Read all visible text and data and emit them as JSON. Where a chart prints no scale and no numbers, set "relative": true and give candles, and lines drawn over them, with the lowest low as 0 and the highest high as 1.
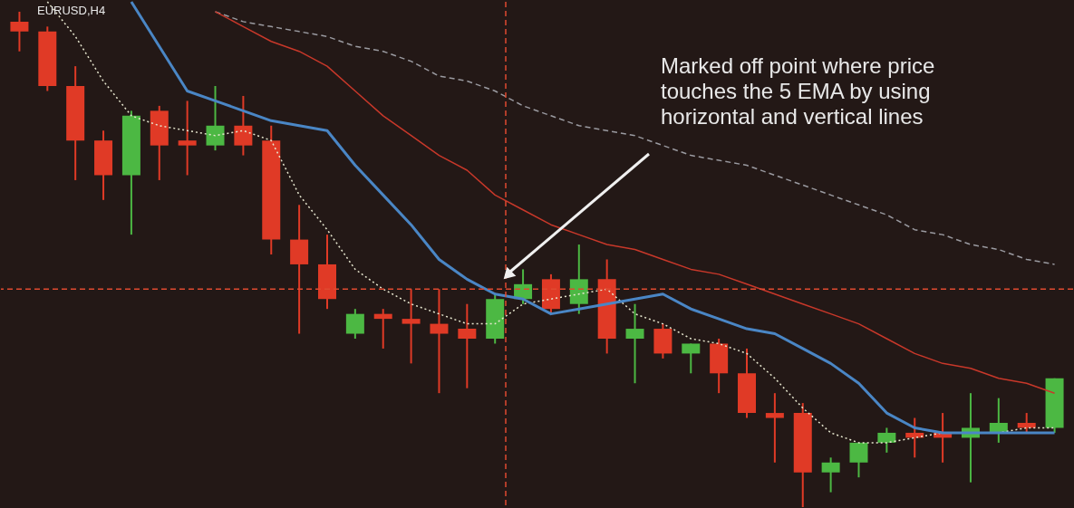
{
  "chart_data": {
    "type": "candlestick",
    "title": "EURUSD,H4",
    "relative": true,
    "categories": [
      null,
      null,
      null,
      null,
      null,
      null,
      null,
      null,
      null,
      null,
      null,
      null,
      null,
      null,
      null,
      null,
      null,
      null,
      null,
      null,
      null,
      null,
      null,
      null,
      null,
      null,
      null,
      null,
      null,
      null,
      null,
      null,
      null,
      null,
      null,
      null,
      null,
      null
    ],
    "ohlc": [
      [
        0.98,
        1.0,
        0.92,
        0.96
      ],
      [
        0.96,
        0.97,
        0.84,
        0.85
      ],
      [
        0.85,
        0.89,
        0.66,
        0.74
      ],
      [
        0.74,
        0.76,
        0.62,
        0.67
      ],
      [
        0.67,
        0.8,
        0.55,
        0.79
      ],
      [
        0.8,
        0.81,
        0.66,
        0.73
      ],
      [
        0.74,
        0.82,
        0.67,
        0.73
      ],
      [
        0.73,
        0.85,
        0.72,
        0.77
      ],
      [
        0.77,
        0.83,
        0.71,
        0.73
      ],
      [
        0.74,
        0.77,
        0.51,
        0.54
      ],
      [
        0.54,
        0.61,
        0.35,
        0.49
      ],
      [
        0.49,
        0.55,
        0.4,
        0.42
      ],
      [
        0.35,
        0.4,
        0.34,
        0.39
      ],
      [
        0.39,
        0.4,
        0.32,
        0.38
      ],
      [
        0.38,
        0.44,
        0.29,
        0.37
      ],
      [
        0.37,
        0.44,
        0.23,
        0.35
      ],
      [
        0.36,
        0.41,
        0.24,
        0.34
      ],
      [
        0.34,
        0.43,
        0.33,
        0.42
      ],
      [
        0.42,
        0.48,
        0.41,
        0.45
      ],
      [
        0.46,
        0.47,
        0.39,
        0.4
      ],
      [
        0.41,
        0.53,
        0.39,
        0.46
      ],
      [
        0.46,
        0.5,
        0.31,
        0.34
      ],
      [
        0.34,
        0.41,
        0.25,
        0.36
      ],
      [
        0.36,
        0.37,
        0.3,
        0.31
      ],
      [
        0.31,
        0.33,
        0.27,
        0.33
      ],
      [
        0.33,
        0.34,
        0.23,
        0.27
      ],
      [
        0.27,
        0.32,
        0.18,
        0.19
      ],
      [
        0.19,
        0.23,
        0.09,
        0.18
      ],
      [
        0.19,
        0.21,
        0.0,
        0.07
      ],
      [
        0.07,
        0.1,
        0.03,
        0.09
      ],
      [
        0.09,
        0.13,
        0.06,
        0.13
      ],
      [
        0.13,
        0.16,
        0.11,
        0.15
      ],
      [
        0.15,
        0.18,
        0.1,
        0.14
      ],
      [
        0.15,
        0.19,
        0.09,
        0.14
      ],
      [
        0.14,
        0.23,
        0.05,
        0.16
      ],
      [
        0.15,
        0.22,
        0.13,
        0.17
      ],
      [
        0.17,
        0.19,
        0.15,
        0.16
      ],
      [
        0.16,
        0.26,
        0.15,
        0.26
      ]
    ],
    "colors": [
      "#e03a26",
      "#e03a26",
      "#e03a26",
      "#e03a26",
      "#4cb843",
      "#e03a26",
      "#e03a26",
      "#4cb843",
      "#e03a26",
      "#e03a26",
      "#e03a26",
      "#e03a26",
      "#4cb843",
      "#e03a26",
      "#e03a26",
      "#e03a26",
      "#e03a26",
      "#4cb843",
      "#4cb843",
      "#e03a26",
      "#4cb843",
      "#e03a26",
      "#4cb843",
      "#e03a26",
      "#4cb843",
      "#e03a26",
      "#e03a26",
      "#e03a26",
      "#e03a26",
      "#4cb843",
      "#4cb843",
      "#4cb843",
      "#e03a26",
      "#e03a26",
      "#4cb843",
      "#4cb843",
      "#e03a26",
      "#4cb843"
    ],
    "series": [
      {
        "type": "line",
        "color": "#9a9aa0",
        "line_style": "dashed",
        "values": [
          null,
          null,
          null,
          null,
          null,
          null,
          null,
          1.0,
          0.98,
          0.97,
          0.96,
          0.95,
          0.93,
          0.92,
          0.9,
          0.87,
          0.86,
          0.84,
          0.81,
          0.79,
          0.77,
          0.76,
          0.75,
          0.73,
          0.71,
          0.7,
          0.69,
          0.67,
          0.65,
          0.63,
          0.61,
          0.59,
          0.56,
          0.55,
          0.53,
          0.52,
          0.5,
          0.49
        ]
      },
      {
        "type": "line",
        "color": "#c8382a",
        "line_style": "solid",
        "values": [
          null,
          null,
          null,
          null,
          null,
          null,
          null,
          1.0,
          0.97,
          0.94,
          0.92,
          0.89,
          0.84,
          0.79,
          0.75,
          0.71,
          0.68,
          0.63,
          0.6,
          0.57,
          0.55,
          0.53,
          0.52,
          0.5,
          0.48,
          0.47,
          0.45,
          0.43,
          0.41,
          0.39,
          0.37,
          0.34,
          0.31,
          0.29,
          0.28,
          0.26,
          0.25,
          0.23
        ]
      },
      {
        "type": "line",
        "color": "#e8e8d0",
        "line_style": "dotted",
        "values": [
          null,
          1.02,
          0.95,
          0.86,
          0.79,
          0.77,
          0.76,
          0.75,
          0.76,
          0.74,
          0.63,
          0.56,
          0.48,
          0.44,
          0.41,
          0.39,
          0.37,
          0.37,
          0.41,
          0.42,
          0.43,
          0.44,
          0.39,
          0.37,
          0.34,
          0.33,
          0.31,
          0.26,
          0.2,
          0.15,
          0.13,
          0.13,
          0.14,
          0.15,
          0.15,
          0.15,
          0.16,
          0.16
        ]
      },
      {
        "type": "line",
        "color": "#4a86c5",
        "line_style": "solid",
        "values": [
          null,
          null,
          null,
          null,
          1.02,
          0.93,
          0.84,
          0.82,
          0.8,
          0.78,
          0.77,
          0.76,
          0.69,
          0.63,
          0.57,
          0.5,
          0.46,
          0.43,
          0.42,
          0.39,
          0.4,
          0.41,
          0.42,
          0.43,
          0.4,
          0.38,
          0.36,
          0.35,
          0.32,
          0.29,
          0.25,
          0.19,
          0.16,
          0.15,
          0.15,
          0.15,
          0.15,
          0.15
        ]
      }
    ],
    "ref_lines": [
      {
        "axis": "y",
        "value": 0.44,
        "color": "#e04a30",
        "line_style": "dashed"
      }
    ],
    "annotations": [
      "Marked off point where price touches the 5 EMA by using horizontal and vertical lines"
    ]
  }
}
